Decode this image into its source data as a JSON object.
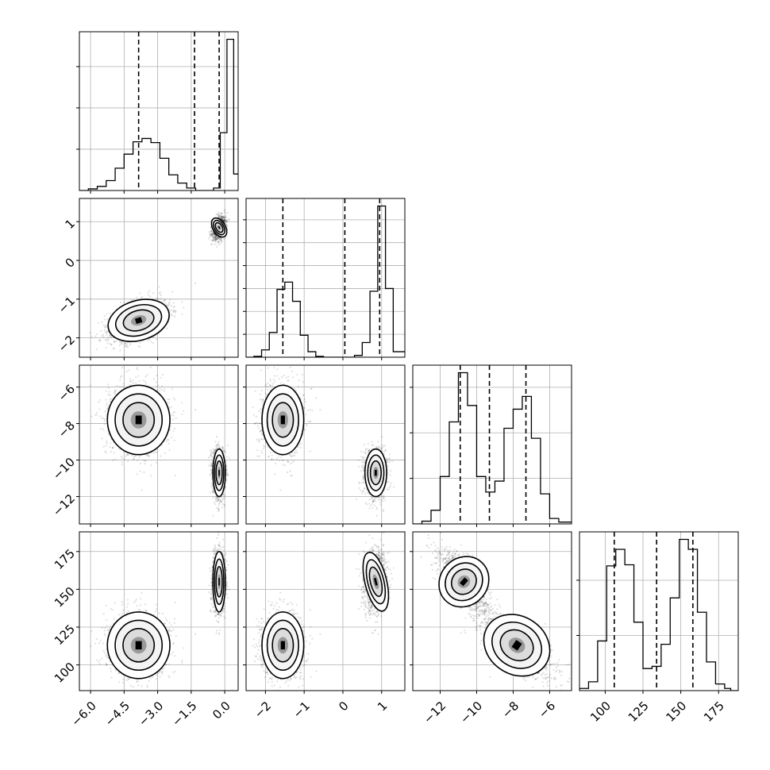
{
  "chart_data": {
    "type": "corner",
    "parameters": [
      {
        "ticks": [
          -6.0,
          -4.5,
          -3.0,
          -1.5,
          0.0
        ],
        "tick_labels": [
          "−6.0",
          "−4.5",
          "−3.0",
          "−1.5",
          "0.0"
        ],
        "range": [
          -6.5,
          0.6
        ],
        "quantiles": [
          -3.85,
          -1.35,
          -0.25
        ]
      },
      {
        "ticks": [
          -2,
          -1,
          0,
          1
        ],
        "tick_labels": [
          "−2",
          "−1",
          "0",
          "1"
        ],
        "range": [
          -2.5,
          1.6
        ],
        "quantiles": [
          -1.55,
          0.05,
          0.95
        ]
      },
      {
        "ticks": [
          -12,
          -10,
          -8,
          -6
        ],
        "tick_labels": [
          "−12",
          "−10",
          "−8",
          "−6"
        ],
        "range": [
          -13.5,
          -4.8
        ],
        "quantiles": [
          -10.9,
          -9.3,
          -7.3
        ]
      },
      {
        "ticks": [
          100,
          125,
          150,
          175
        ],
        "tick_labels": [
          "100",
          "125",
          "150",
          "175"
        ],
        "range": [
          83,
          188
        ],
        "quantiles": [
          106,
          134,
          158
        ]
      }
    ],
    "histograms": [
      {
        "edges": [
          -6.5,
          -6.1,
          -5.7,
          -5.3,
          -4.9,
          -4.5,
          -4.1,
          -3.7,
          -3.3,
          -2.9,
          -2.5,
          -2.1,
          -1.7,
          -1.3,
          -0.9,
          -0.5,
          -0.2,
          0.1,
          0.4,
          0.6
        ],
        "counts": [
          0,
          2,
          5,
          12,
          27,
          44,
          59,
          63,
          58,
          39,
          19,
          9,
          3,
          0,
          0,
          3,
          70,
          183,
          20
        ]
      },
      {
        "edges": [
          -2.5,
          -2.3,
          -2.1,
          -1.9,
          -1.7,
          -1.5,
          -1.3,
          -1.1,
          -0.9,
          -0.7,
          -0.5,
          -0.3,
          -0.1,
          0.1,
          0.3,
          0.5,
          0.7,
          0.9,
          1.1,
          1.3,
          1.6
        ],
        "counts": [
          0,
          1,
          8,
          27,
          74,
          82,
          61,
          24,
          6,
          1,
          0,
          0,
          0,
          0,
          2,
          16,
          72,
          165,
          75,
          6
        ]
      },
      {
        "edges": [
          -13.5,
          -13.0,
          -12.5,
          -12.0,
          -11.5,
          -11.0,
          -10.5,
          -10.0,
          -9.5,
          -9.0,
          -8.5,
          -8.0,
          -7.5,
          -7.0,
          -6.5,
          -6.0,
          -5.5,
          -4.8
        ],
        "counts": [
          0,
          3,
          15,
          52,
          112,
          166,
          130,
          52,
          35,
          47,
          105,
          126,
          140,
          94,
          33,
          6,
          2
        ]
      },
      {
        "edges": [
          83,
          89,
          95,
          101,
          107,
          113,
          119,
          125,
          131,
          137,
          143,
          149,
          155,
          161,
          167,
          173,
          179,
          183,
          188
        ],
        "counts": [
          2,
          8,
          45,
          113,
          128,
          114,
          62,
          20,
          22,
          42,
          84,
          137,
          128,
          71,
          26,
          6,
          2,
          0
        ]
      }
    ],
    "histogram_y_ticks": [
      [
        50,
        100,
        150
      ],
      [
        25,
        50,
        75,
        100,
        125,
        150
      ],
      [
        50,
        100,
        150
      ],
      [
        50,
        100
      ]
    ],
    "clusters": [
      {
        "center": [
          -3.85,
          -1.55,
          -7.8,
          113
        ],
        "sigma": [
          0.7,
          0.27,
          0.95,
          11
        ]
      },
      {
        "center": [
          -0.25,
          0.85,
          -10.7,
          155
        ],
        "sigma": [
          0.14,
          0.14,
          0.65,
          10
        ]
      }
    ],
    "cluster_correlations": [
      {
        "0-1": 0.45,
        "0-2": 0.0,
        "0-3": 0.0,
        "1-2": 0.0,
        "1-3": 0.0,
        "2-3": -0.7
      },
      {
        "0-1": 0.35,
        "0-2": 0.0,
        "0-3": 0.0,
        "1-2": 0.0,
        "1-3": 0.15,
        "2-3": -0.7
      }
    ],
    "grid": true
  }
}
